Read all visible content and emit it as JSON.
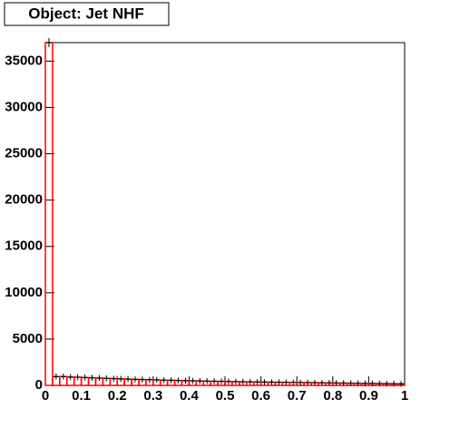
{
  "chart_data": {
    "type": "histogram",
    "title": "Object: Jet NHF",
    "bins": [
      0,
      0.02,
      0.04,
      0.06,
      0.08,
      0.1,
      0.12,
      0.14,
      0.16,
      0.18,
      0.2,
      0.22,
      0.24,
      0.26,
      0.28,
      0.3,
      0.32,
      0.34,
      0.36,
      0.38,
      0.4,
      0.42,
      0.44,
      0.46,
      0.48,
      0.5,
      0.52,
      0.54,
      0.56,
      0.58,
      0.6,
      0.62,
      0.64,
      0.66,
      0.68,
      0.7,
      0.72,
      0.74,
      0.76,
      0.78,
      0.8,
      0.82,
      0.84,
      0.86,
      0.88,
      0.9,
      0.92,
      0.94,
      0.96,
      0.98,
      1
    ],
    "values": [
      37000,
      950,
      950,
      900,
      880,
      850,
      820,
      790,
      760,
      730,
      700,
      680,
      650,
      630,
      610,
      590,
      570,
      550,
      530,
      510,
      495,
      480,
      465,
      450,
      435,
      420,
      405,
      390,
      380,
      370,
      360,
      350,
      340,
      330,
      320,
      310,
      300,
      290,
      280,
      270,
      260,
      250,
      240,
      230,
      220,
      210,
      200,
      190,
      180,
      170
    ],
    "color": "#ff0000",
    "xlim": [
      0,
      1
    ],
    "xticks": [
      0,
      0.1,
      0.2,
      0.3,
      0.4,
      0.5,
      0.6,
      0.7,
      0.8,
      0.9,
      1
    ],
    "ylim": [
      0,
      37000
    ],
    "yticks": [
      0,
      5000,
      10000,
      15000,
      20000,
      25000,
      30000,
      35000
    ]
  }
}
